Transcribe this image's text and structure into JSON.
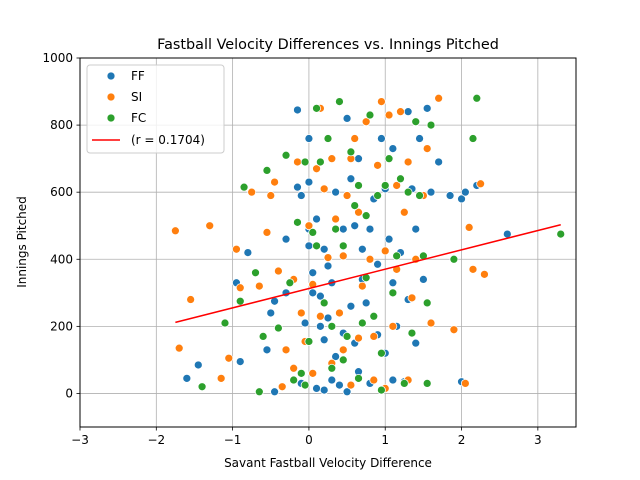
{
  "chart_data": {
    "type": "scatter",
    "title": "Fastball Velocity Differences vs. Innings Pitched",
    "xlabel": "Savant Fastball Velocity Difference",
    "ylabel": "Innings Pitched",
    "xlim": [
      -3,
      3.5
    ],
    "ylim": [
      -100,
      1000
    ],
    "xticks": [
      -3,
      -2,
      -1,
      0,
      1,
      2,
      3
    ],
    "yticks": [
      0,
      200,
      400,
      600,
      800,
      1000
    ],
    "grid": true,
    "legend": "top-left",
    "series": [
      {
        "name": "FF",
        "color": "#1f77b4",
        "points": [
          [
            -1.6,
            45
          ],
          [
            -1.45,
            85
          ],
          [
            -0.9,
            95
          ],
          [
            -0.95,
            330
          ],
          [
            -0.8,
            420
          ],
          [
            -0.55,
            130
          ],
          [
            -0.5,
            240
          ],
          [
            -0.45,
            275
          ],
          [
            -0.3,
            300
          ],
          [
            -0.3,
            460
          ],
          [
            -0.15,
            615
          ],
          [
            -0.15,
            845
          ],
          [
            -0.1,
            590
          ],
          [
            -0.05,
            210
          ],
          [
            0.0,
            760
          ],
          [
            0.0,
            630
          ],
          [
            0.0,
            490
          ],
          [
            0.0,
            440
          ],
          [
            0.05,
            360
          ],
          [
            0.05,
            300
          ],
          [
            0.1,
            520
          ],
          [
            0.15,
            290
          ],
          [
            0.15,
            200
          ],
          [
            0.2,
            430
          ],
          [
            0.2,
            160
          ],
          [
            0.25,
            380
          ],
          [
            0.3,
            330
          ],
          [
            0.3,
            40
          ],
          [
            0.35,
            600
          ],
          [
            0.4,
            870
          ],
          [
            0.45,
            490
          ],
          [
            0.5,
            820
          ],
          [
            0.55,
            640
          ],
          [
            0.55,
            260
          ],
          [
            0.6,
            500
          ],
          [
            0.6,
            150
          ],
          [
            0.65,
            700
          ],
          [
            0.7,
            430
          ],
          [
            0.75,
            270
          ],
          [
            0.8,
            490
          ],
          [
            0.85,
            580
          ],
          [
            0.9,
            385
          ],
          [
            0.95,
            760
          ],
          [
            1.0,
            610
          ],
          [
            1.0,
            120
          ],
          [
            1.05,
            460
          ],
          [
            1.1,
            730
          ],
          [
            1.1,
            330
          ],
          [
            1.15,
            200
          ],
          [
            1.2,
            420
          ],
          [
            1.3,
            840
          ],
          [
            1.3,
            280
          ],
          [
            1.35,
            610
          ],
          [
            1.4,
            490
          ],
          [
            1.45,
            760
          ],
          [
            1.5,
            340
          ],
          [
            1.55,
            850
          ],
          [
            1.6,
            600
          ],
          [
            1.7,
            690
          ],
          [
            1.85,
            590
          ],
          [
            2.0,
            580
          ],
          [
            2.05,
            600
          ],
          [
            2.2,
            620
          ],
          [
            2.6,
            475
          ],
          [
            2.0,
            35
          ],
          [
            -0.45,
            5
          ],
          [
            -0.1,
            30
          ],
          [
            0.1,
            15
          ],
          [
            0.2,
            10
          ],
          [
            0.4,
            25
          ],
          [
            0.5,
            5
          ],
          [
            0.65,
            65
          ],
          [
            0.8,
            30
          ],
          [
            1.1,
            40
          ],
          [
            1.25,
            35
          ],
          [
            1.4,
            150
          ],
          [
            0.25,
            225
          ],
          [
            0.35,
            110
          ],
          [
            0.45,
            180
          ],
          [
            0.7,
            340
          ],
          [
            0.9,
            175
          ]
        ]
      },
      {
        "name": "SI",
        "color": "#ff7f0e",
        "points": [
          [
            -1.75,
            485
          ],
          [
            -1.7,
            135
          ],
          [
            -1.55,
            280
          ],
          [
            -1.3,
            500
          ],
          [
            -1.15,
            45
          ],
          [
            -1.05,
            105
          ],
          [
            -0.95,
            430
          ],
          [
            -0.9,
            315
          ],
          [
            -0.75,
            600
          ],
          [
            -0.65,
            320
          ],
          [
            -0.55,
            480
          ],
          [
            -0.5,
            590
          ],
          [
            -0.45,
            630
          ],
          [
            -0.4,
            365
          ],
          [
            -0.3,
            130
          ],
          [
            -0.2,
            340
          ],
          [
            -0.15,
            690
          ],
          [
            -0.1,
            240
          ],
          [
            -0.05,
            155
          ],
          [
            0.0,
            500
          ],
          [
            0.05,
            325
          ],
          [
            0.1,
            670
          ],
          [
            0.15,
            850
          ],
          [
            0.2,
            610
          ],
          [
            0.25,
            405
          ],
          [
            0.3,
            700
          ],
          [
            0.35,
            520
          ],
          [
            0.4,
            240
          ],
          [
            0.45,
            130
          ],
          [
            0.5,
            590
          ],
          [
            0.55,
            700
          ],
          [
            0.6,
            760
          ],
          [
            0.65,
            540
          ],
          [
            0.7,
            320
          ],
          [
            0.75,
            810
          ],
          [
            0.8,
            400
          ],
          [
            0.85,
            170
          ],
          [
            0.9,
            680
          ],
          [
            0.95,
            870
          ],
          [
            1.0,
            425
          ],
          [
            1.05,
            830
          ],
          [
            1.1,
            200
          ],
          [
            1.15,
            620
          ],
          [
            1.2,
            840
          ],
          [
            1.25,
            540
          ],
          [
            1.3,
            690
          ],
          [
            1.35,
            285
          ],
          [
            1.4,
            400
          ],
          [
            1.5,
            590
          ],
          [
            1.55,
            730
          ],
          [
            1.6,
            210
          ],
          [
            1.7,
            880
          ],
          [
            1.9,
            190
          ],
          [
            2.05,
            30
          ],
          [
            2.1,
            495
          ],
          [
            2.15,
            370
          ],
          [
            2.25,
            625
          ],
          [
            2.3,
            355
          ],
          [
            -0.35,
            20
          ],
          [
            0.05,
            60
          ],
          [
            0.3,
            90
          ],
          [
            0.55,
            25
          ],
          [
            0.85,
            40
          ],
          [
            1.0,
            15
          ],
          [
            1.3,
            40
          ],
          [
            -0.2,
            75
          ],
          [
            0.15,
            230
          ],
          [
            0.65,
            165
          ],
          [
            1.15,
            370
          ],
          [
            0.45,
            410
          ]
        ]
      },
      {
        "name": "FC",
        "color": "#2ca02c",
        "points": [
          [
            -1.4,
            20
          ],
          [
            -1.1,
            210
          ],
          [
            -0.9,
            275
          ],
          [
            -0.85,
            615
          ],
          [
            -0.7,
            360
          ],
          [
            -0.6,
            170
          ],
          [
            -0.55,
            665
          ],
          [
            -0.4,
            195
          ],
          [
            -0.3,
            710
          ],
          [
            -0.25,
            330
          ],
          [
            -0.2,
            40
          ],
          [
            -0.15,
            510
          ],
          [
            -0.1,
            60
          ],
          [
            -0.05,
            690
          ],
          [
            0.0,
            155
          ],
          [
            0.05,
            480
          ],
          [
            0.1,
            850
          ],
          [
            0.15,
            690
          ],
          [
            0.2,
            270
          ],
          [
            0.25,
            760
          ],
          [
            0.3,
            200
          ],
          [
            0.35,
            490
          ],
          [
            0.4,
            870
          ],
          [
            0.45,
            440
          ],
          [
            0.5,
            170
          ],
          [
            0.55,
            720
          ],
          [
            0.6,
            560
          ],
          [
            0.65,
            620
          ],
          [
            0.7,
            210
          ],
          [
            0.75,
            345
          ],
          [
            0.8,
            830
          ],
          [
            0.85,
            230
          ],
          [
            0.9,
            590
          ],
          [
            0.95,
            120
          ],
          [
            1.0,
            620
          ],
          [
            1.05,
            700
          ],
          [
            1.1,
            300
          ],
          [
            1.15,
            410
          ],
          [
            1.2,
            640
          ],
          [
            1.25,
            30
          ],
          [
            1.3,
            600
          ],
          [
            1.35,
            180
          ],
          [
            1.4,
            810
          ],
          [
            1.45,
            590
          ],
          [
            1.5,
            410
          ],
          [
            1.55,
            270
          ],
          [
            1.6,
            800
          ],
          [
            1.9,
            400
          ],
          [
            2.15,
            760
          ],
          [
            2.2,
            880
          ],
          [
            3.3,
            475
          ],
          [
            -0.65,
            5
          ],
          [
            -0.05,
            25
          ],
          [
            0.3,
            75
          ],
          [
            0.65,
            45
          ],
          [
            0.95,
            10
          ],
          [
            1.55,
            30
          ],
          [
            0.45,
            100
          ],
          [
            0.1,
            440
          ],
          [
            0.75,
            530
          ]
        ]
      }
    ],
    "trendline": {
      "name": "(r = 0.1704)",
      "color": "#ff0000",
      "x": [
        -1.75,
        3.3
      ],
      "y": [
        212,
        503
      ]
    }
  }
}
